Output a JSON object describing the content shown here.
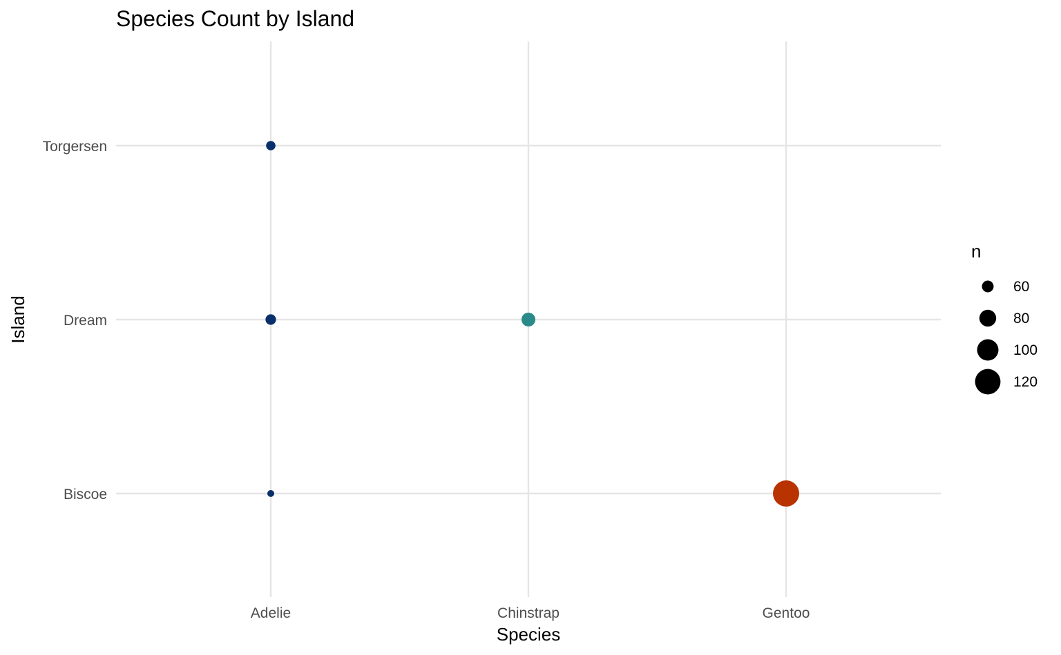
{
  "chart_data": {
    "type": "scatter",
    "title": "Species Count by Island",
    "xlabel": "Species",
    "ylabel": "Island",
    "x_categories": [
      "Adelie",
      "Chinstrap",
      "Gentoo"
    ],
    "y_categories": [
      "Biscoe",
      "Dream",
      "Torgersen"
    ],
    "points": [
      {
        "x": "Adelie",
        "y": "Biscoe",
        "n": 44,
        "color": "#08306b"
      },
      {
        "x": "Adelie",
        "y": "Dream",
        "n": 56,
        "color": "#08306b"
      },
      {
        "x": "Adelie",
        "y": "Torgersen",
        "n": 52,
        "color": "#08306b"
      },
      {
        "x": "Chinstrap",
        "y": "Dream",
        "n": 68,
        "color": "#2a8a8a"
      },
      {
        "x": "Gentoo",
        "y": "Biscoe",
        "n": 124,
        "color": "#b83300"
      }
    ],
    "size_legend": {
      "title": "n",
      "breaks": [
        60,
        80,
        100,
        120
      ],
      "labels": [
        "60",
        "80",
        "100",
        "120"
      ],
      "placement": "right",
      "color": "#000000"
    },
    "grid": true,
    "theme": "minimal"
  }
}
